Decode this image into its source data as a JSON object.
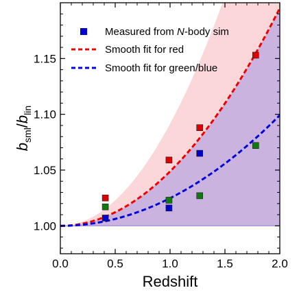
{
  "chart_data": {
    "type": "scatter",
    "xlabel": "Redshift",
    "ylabel": {
      "main": "b",
      "sub1": "sml",
      "sep": "/",
      "sub2": "lin"
    },
    "xlim": [
      0.0,
      2.0
    ],
    "ylim": [
      0.975,
      1.2
    ],
    "xticks": [
      "0.0",
      "0.5",
      "1.0",
      "1.5",
      "2.0"
    ],
    "yticks": [
      "1.00",
      "1.05",
      "1.10",
      "1.15"
    ],
    "xtick_values": [
      0.0,
      0.5,
      1.0,
      1.5,
      2.0
    ],
    "ytick_values": [
      1.0,
      1.05,
      1.1,
      1.15
    ],
    "legend_position": "top-left",
    "legend": [
      {
        "label_pre": "Measured from ",
        "label_italic": "N",
        "label_post": "-body sim",
        "marker": "square",
        "color": "#0000cc"
      },
      {
        "label_pre": "Smooth fit for red",
        "label_italic": "",
        "label_post": "",
        "marker": "dashed-line",
        "color": "#ee0000"
      },
      {
        "label_pre": "Smooth fit for green/blue",
        "label_italic": "",
        "label_post": "",
        "marker": "dashed-line",
        "color": "#0000dd"
      }
    ],
    "series": [
      {
        "color_name": "red",
        "color": "#dd0000",
        "points": [
          {
            "x": 0.41,
            "y": 1.025
          },
          {
            "x": 0.99,
            "y": 1.059
          },
          {
            "x": 1.27,
            "y": 1.088
          },
          {
            "x": 1.78,
            "y": 1.153
          }
        ]
      },
      {
        "color_name": "green",
        "color": "#117711",
        "points": [
          {
            "x": 0.41,
            "y": 1.017
          },
          {
            "x": 0.99,
            "y": 1.023
          },
          {
            "x": 1.27,
            "y": 1.027
          },
          {
            "x": 1.78,
            "y": 1.072
          }
        ]
      },
      {
        "color_name": "blue",
        "color": "#0000cc",
        "points": [
          {
            "x": 0.41,
            "y": 1.007
          },
          {
            "x": 0.99,
            "y": 1.016
          },
          {
            "x": 1.27,
            "y": 1.065
          }
        ]
      }
    ],
    "fits": [
      {
        "name": "red",
        "color": "#ee0000",
        "a": 0.0488,
        "power": 2
      },
      {
        "name": "green/blue",
        "color": "#0000dd",
        "a": 0.0248,
        "power": 2
      }
    ],
    "bands": [
      {
        "name": "red-band",
        "color": "#f9c9cc",
        "opacity": 0.75,
        "lower_a": 0.0,
        "upper_a": 0.0915,
        "power": 2
      },
      {
        "name": "blue-band",
        "color": "#b7a6e0",
        "opacity": 0.72,
        "lower_a": 0.0,
        "upper_a": 0.0488,
        "power": 2
      }
    ],
    "grid": false
  }
}
